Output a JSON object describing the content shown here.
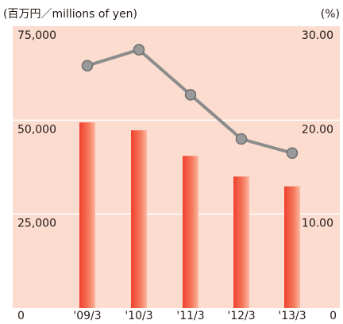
{
  "chart_data": {
    "type": "bar_line",
    "ylabel": "(百万円／millions of yen)",
    "y2label": "(%)",
    "categories": [
      "'09/3",
      "'10/3",
      "'11/3",
      "'12/3",
      "'13/3"
    ],
    "series": [
      {
        "type": "bar",
        "color": "#f0563c",
        "values": [
          49400,
          47300,
          40500,
          35000,
          32400
        ]
      },
      {
        "type": "line",
        "axis": "y2",
        "color": "#8c8c8c",
        "values": [
          25.8,
          27.5,
          22.7,
          18.0,
          16.5
        ]
      }
    ],
    "ylim": [
      0,
      75000
    ],
    "yticks": [
      0,
      {
        "value": 25000,
        "label": "25,000"
      },
      {
        "value": 50000,
        "label": "50,000"
      },
      {
        "value": 75000,
        "label": "75,000"
      }
    ],
    "y2lim": [
      0,
      30
    ],
    "y2ticks": [
      0,
      {
        "value": 10,
        "label": "10.00"
      },
      {
        "value": 20,
        "label": "20.00"
      },
      {
        "value": 30,
        "label": "30.00"
      }
    ],
    "grid": true
  }
}
